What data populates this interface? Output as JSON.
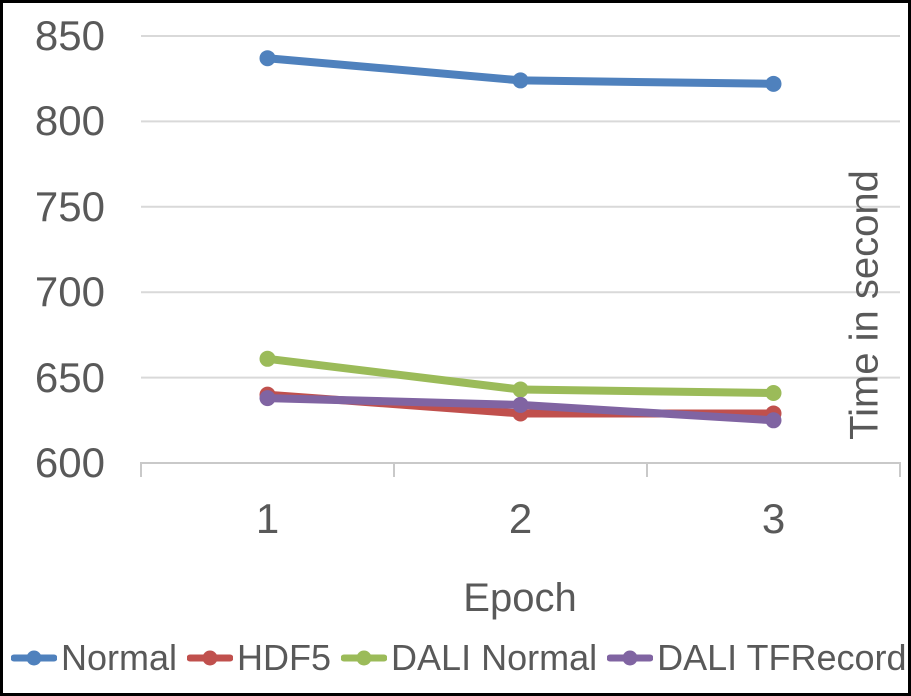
{
  "frame": {
    "border_color": "#000000",
    "background_color": "#FFFFFF"
  },
  "chart_data": {
    "type": "line",
    "title": "",
    "xlabel": "Epoch",
    "ylabel": "Time in second",
    "ylabel_position": "right-inside-rotated",
    "categories": [
      "1",
      "2",
      "3"
    ],
    "series": [
      {
        "name": "Normal",
        "color": "#4F81BD",
        "values": [
          837,
          824,
          822
        ]
      },
      {
        "name": "HDF5",
        "color": "#C0504D",
        "values": [
          640,
          629,
          629
        ]
      },
      {
        "name": "DALI Normal",
        "color": "#9BBB59",
        "values": [
          661,
          643,
          641
        ]
      },
      {
        "name": "DALI TFRecord",
        "color": "#8064A2",
        "values": [
          638,
          634,
          625
        ]
      }
    ],
    "ylim": [
      600,
      850
    ],
    "yticks": [
      850,
      800,
      750,
      700,
      650,
      600
    ],
    "grid": "horizontal",
    "legend_position": "bottom",
    "text_color": "#595959",
    "gridline_color": "#D9D9D9",
    "axis_color": "#C9C9C9"
  }
}
